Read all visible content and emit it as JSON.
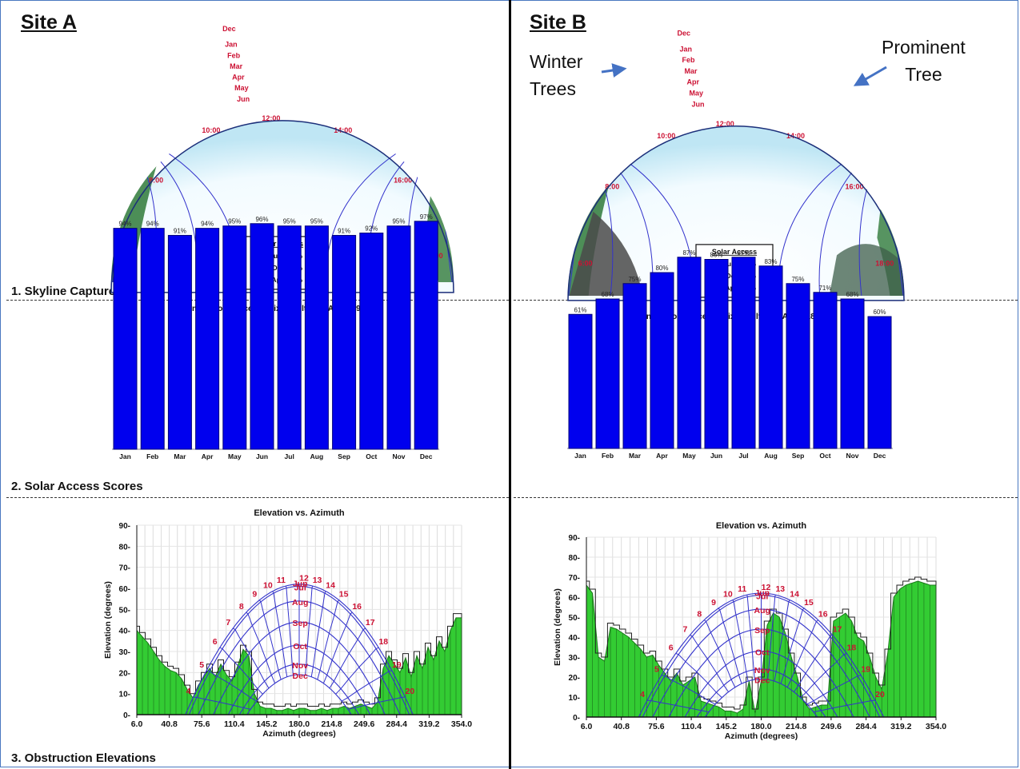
{
  "site_a": {
    "title": "Site A",
    "skyline": {
      "month_labels": [
        "Dec",
        "Jan",
        "Feb",
        "Mar",
        "Apr",
        "May",
        "Jun"
      ],
      "hour_labels": [
        "8:00",
        "10:00",
        "12:00",
        "14:00",
        "16:00",
        "18:00",
        "6:00"
      ],
      "solar_access_box": {
        "title": "Solar Access",
        "rows": [
          {
            "label": "Annual:",
            "value": "94%"
          },
          {
            "label": "May-Oct:",
            "value": "94%"
          },
          {
            "label": "Nov-Apr:",
            "value": "94%"
          }
        ]
      }
    }
  },
  "site_b": {
    "title": "Site B",
    "annotations": {
      "winter": "Winter\nTrees",
      "prominent": "Prominent\nTree"
    },
    "skyline": {
      "month_labels": [
        "Dec",
        "Jan",
        "Feb",
        "Mar",
        "Apr",
        "May",
        "Jun"
      ],
      "hour_labels": [
        "8:00",
        "10:00",
        "12:00",
        "14:00",
        "16:00",
        "18:00",
        "6:00"
      ],
      "solar_access_box": {
        "title": "Solar Access",
        "rows": [
          {
            "label": "Annual:",
            "value": "79%"
          },
          {
            "label": "May-Oct:",
            "value": "83%"
          },
          {
            "label": "Nov-Apr:",
            "value": "72%"
          }
        ]
      }
    }
  },
  "sections": {
    "skyline": "1. Skyline Capture",
    "scores": "2. Solar Access Scores",
    "obstruction": "3. Obstruction Elevations"
  },
  "colors": {
    "bar": "#0000ee",
    "obstruction_fill": "#33cc33",
    "sunpath": "#3333cc",
    "red_label": "#cc1133",
    "sky_band": "#fbeaa0"
  },
  "chart_data": [
    {
      "type": "bar",
      "title": "Monthly solar access: (Fixed; Tilt=34°; Azim=195°)",
      "categories": [
        "Jan",
        "Feb",
        "Mar",
        "Apr",
        "May",
        "Jun",
        "Jul",
        "Aug",
        "Sep",
        "Oct",
        "Nov",
        "Dec"
      ],
      "values": [
        94,
        94,
        91,
        94,
        95,
        96,
        95,
        95,
        91,
        92,
        95,
        97
      ],
      "value_labels": [
        "94%",
        "94%",
        "91%",
        "94%",
        "95%",
        "96%",
        "95%",
        "95%",
        "91%",
        "92%",
        "95%",
        "97%"
      ],
      "ylim": [
        0,
        100
      ]
    },
    {
      "type": "bar",
      "title": "Monthly solar access: (Fixed; Tilt=14°; Azim=180°)",
      "categories": [
        "Jan",
        "Feb",
        "Mar",
        "Apr",
        "May",
        "Jun",
        "Jul",
        "Aug",
        "Sep",
        "Oct",
        "Nov",
        "Dec"
      ],
      "values": [
        61,
        68,
        75,
        80,
        87,
        86,
        87,
        83,
        75,
        71,
        68,
        60
      ],
      "value_labels": [
        "61%",
        "68%",
        "75%",
        "80%",
        "87%",
        "86%",
        "87%",
        "83%",
        "75%",
        "71%",
        "68%",
        "60%"
      ],
      "ylim": [
        0,
        100
      ]
    },
    {
      "type": "area",
      "title": "Elevation vs. Azimuth",
      "xlabel": "Azimuth (degrees)",
      "ylabel": "Elevation (degrees)",
      "xlim": [
        6.0,
        354.0
      ],
      "ylim": [
        0,
        90
      ],
      "xticks": [
        "6.0",
        "40.8",
        "75.6",
        "110.4",
        "145.2",
        "180.0",
        "214.8",
        "249.6",
        "284.4",
        "319.2",
        "354.0"
      ],
      "yticks": [
        "0",
        "10",
        "20",
        "30",
        "40",
        "50",
        "60",
        "70",
        "80",
        "90"
      ],
      "obstruction": {
        "azimuth": [
          6,
          12,
          18,
          24,
          30,
          36,
          42,
          48,
          54,
          60,
          66,
          72,
          78,
          84,
          90,
          96,
          102,
          108,
          114,
          120,
          126,
          132,
          138,
          144,
          150,
          156,
          162,
          168,
          174,
          180,
          186,
          192,
          198,
          204,
          210,
          216,
          222,
          228,
          234,
          240,
          246,
          252,
          258,
          264,
          270,
          276,
          282,
          288,
          294,
          300,
          306,
          312,
          318,
          324,
          330,
          336,
          342,
          348,
          354
        ],
        "elevation": [
          40,
          37,
          34,
          30,
          26,
          23,
          21,
          20,
          17,
          12,
          8,
          14,
          18,
          22,
          18,
          24,
          19,
          16,
          23,
          31,
          28,
          10,
          4,
          3,
          3,
          2,
          2,
          3,
          2,
          3,
          3,
          2,
          2,
          3,
          2,
          3,
          3,
          4,
          3,
          4,
          5,
          4,
          3,
          6,
          22,
          28,
          24,
          20,
          27,
          18,
          28,
          22,
          32,
          26,
          35,
          30,
          40,
          46,
          46
        ]
      },
      "sun_path": {
        "months": [
          "Jun",
          "Jul",
          "Aug",
          "Sep",
          "Oct",
          "Nov",
          "Dec"
        ],
        "hours": [
          "4",
          "5",
          "6",
          "7",
          "8",
          "9",
          "10",
          "11",
          "12",
          "13",
          "14",
          "15",
          "16",
          "17",
          "18",
          "19",
          "20"
        ]
      }
    },
    {
      "type": "area",
      "title": "Elevation vs. Azimuth",
      "xlabel": "Azimuth (degrees)",
      "ylabel": "Elevation (degrees)",
      "xlim": [
        6.0,
        354.0
      ],
      "ylim": [
        0,
        90
      ],
      "xticks": [
        "6.0",
        "40.8",
        "75.6",
        "110.4",
        "145.2",
        "180.0",
        "214.8",
        "249.6",
        "284.4",
        "319.2",
        "354.0"
      ],
      "yticks": [
        "0",
        "10",
        "20",
        "30",
        "40",
        "50",
        "60",
        "70",
        "80",
        "90"
      ],
      "obstruction": {
        "azimuth": [
          6,
          12,
          18,
          24,
          30,
          36,
          42,
          48,
          54,
          60,
          66,
          72,
          78,
          84,
          90,
          96,
          102,
          108,
          114,
          120,
          126,
          132,
          138,
          144,
          150,
          156,
          162,
          168,
          174,
          180,
          186,
          192,
          198,
          204,
          210,
          216,
          222,
          228,
          234,
          240,
          246,
          252,
          258,
          264,
          270,
          276,
          282,
          288,
          294,
          300,
          306,
          312,
          318,
          324,
          330,
          336,
          342,
          348,
          354
        ],
        "elevation": [
          66,
          62,
          30,
          28,
          45,
          44,
          42,
          40,
          37,
          34,
          30,
          31,
          26,
          22,
          18,
          22,
          16,
          18,
          20,
          8,
          7,
          6,
          5,
          3,
          3,
          2,
          4,
          18,
          2,
          18,
          46,
          52,
          50,
          42,
          30,
          20,
          8,
          4,
          5,
          6,
          6,
          48,
          50,
          52,
          48,
          40,
          38,
          30,
          20,
          14,
          32,
          60,
          64,
          66,
          67,
          68,
          67,
          66,
          66
        ]
      },
      "sun_path": {
        "months": [
          "Jun",
          "Jul",
          "Aug",
          "Sep",
          "Oct",
          "Nov",
          "Dec"
        ],
        "hours": [
          "4",
          "5",
          "6",
          "7",
          "8",
          "9",
          "10",
          "11",
          "12",
          "13",
          "14",
          "15",
          "16",
          "17",
          "18",
          "19",
          "20"
        ]
      }
    }
  ]
}
